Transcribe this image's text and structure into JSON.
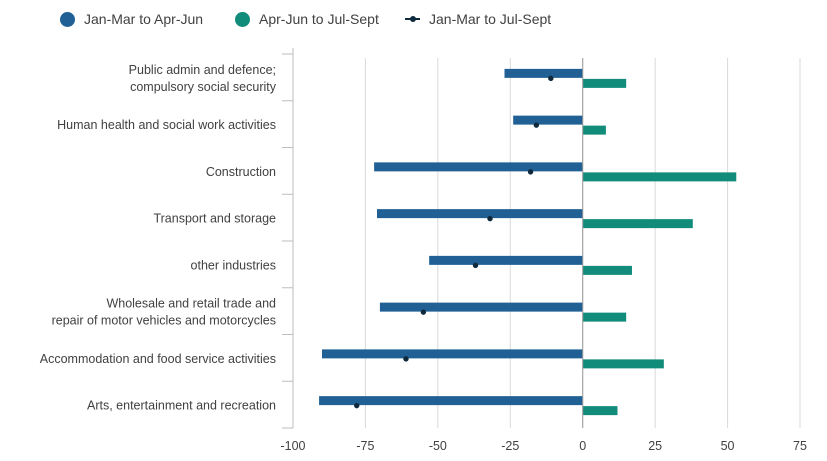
{
  "chart_data": {
    "type": "bar",
    "orientation": "horizontal",
    "title": "",
    "xlabel": "",
    "ylabel": "",
    "categories": [
      [
        "Public admin and defence;",
        "compulsory social security"
      ],
      [
        "Human health and social work activities"
      ],
      [
        "Construction"
      ],
      [
        "Transport and storage"
      ],
      [
        "other industries"
      ],
      [
        "Wholesale and retail trade and",
        "repair of motor vehicles and motorcycles"
      ],
      [
        "Accommodation and food service activities"
      ],
      [
        "Arts, entertainment and recreation"
      ]
    ],
    "series": [
      {
        "name": "Jan-Mar to Apr-Jun",
        "type": "bar",
        "color": "#206095",
        "values": [
          -27,
          -24,
          -72,
          -71,
          -53,
          -70,
          -90,
          -91
        ]
      },
      {
        "name": "Apr-Jun to Jul-Sept",
        "type": "bar",
        "color": "#118c7b",
        "values": [
          15,
          8,
          53,
          38,
          17,
          15,
          28,
          12
        ]
      },
      {
        "name": "Jan-Mar to Jul-Sept",
        "type": "dot",
        "color": "#0f2a3d",
        "values": [
          -11,
          -16,
          -18,
          -32,
          -37,
          -55,
          -61,
          -78
        ]
      }
    ],
    "xlim": [
      -100,
      75
    ],
    "xticks": [
      -100,
      -75,
      -50,
      -25,
      0,
      25,
      50,
      75
    ],
    "xtick_labels": [
      "-100",
      "-75",
      "-50",
      "-25",
      "0",
      "25",
      "50",
      "75"
    ],
    "grid": true,
    "legend_position": "top-left"
  }
}
